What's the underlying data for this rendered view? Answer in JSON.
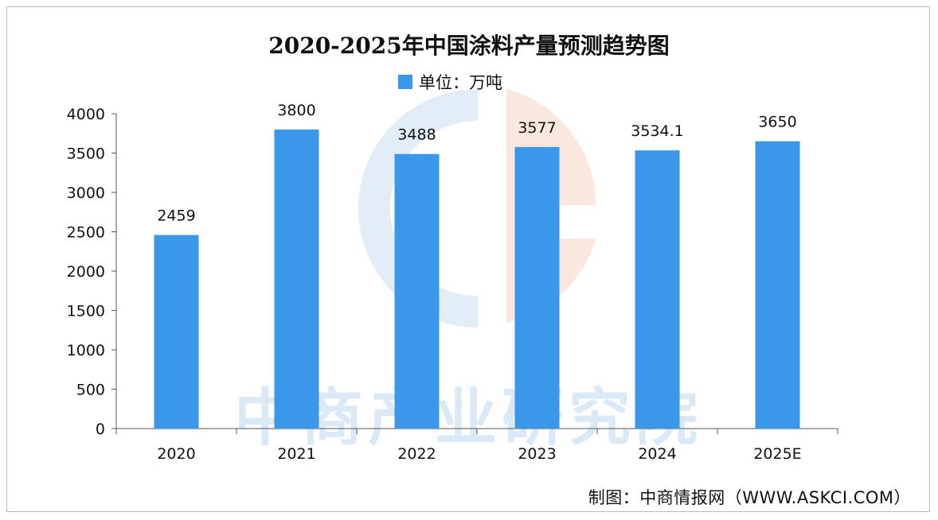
{
  "chart_data": {
    "type": "bar",
    "title": "2020-2025年中国涂料产量预测趋势图",
    "legend": {
      "label": "单位：万吨",
      "placement": "top-center"
    },
    "categories": [
      "2020",
      "2021",
      "2022",
      "2023",
      "2024",
      "2025E"
    ],
    "values": [
      2459,
      3800,
      3488,
      3577,
      3534.1,
      3650
    ],
    "value_labels": [
      "2459",
      "3800",
      "3488",
      "3577",
      "3534.1",
      "3650"
    ],
    "ylim": [
      0,
      4000
    ],
    "yticks": [
      0,
      500,
      1000,
      1500,
      2000,
      2500,
      3000,
      3500,
      4000
    ],
    "grid": false,
    "bar_color": "#3a97ea"
  },
  "watermark": {
    "text": "中商产业研究院"
  },
  "credit": "制图：中商情报网（WWW.ASKCI.COM）"
}
